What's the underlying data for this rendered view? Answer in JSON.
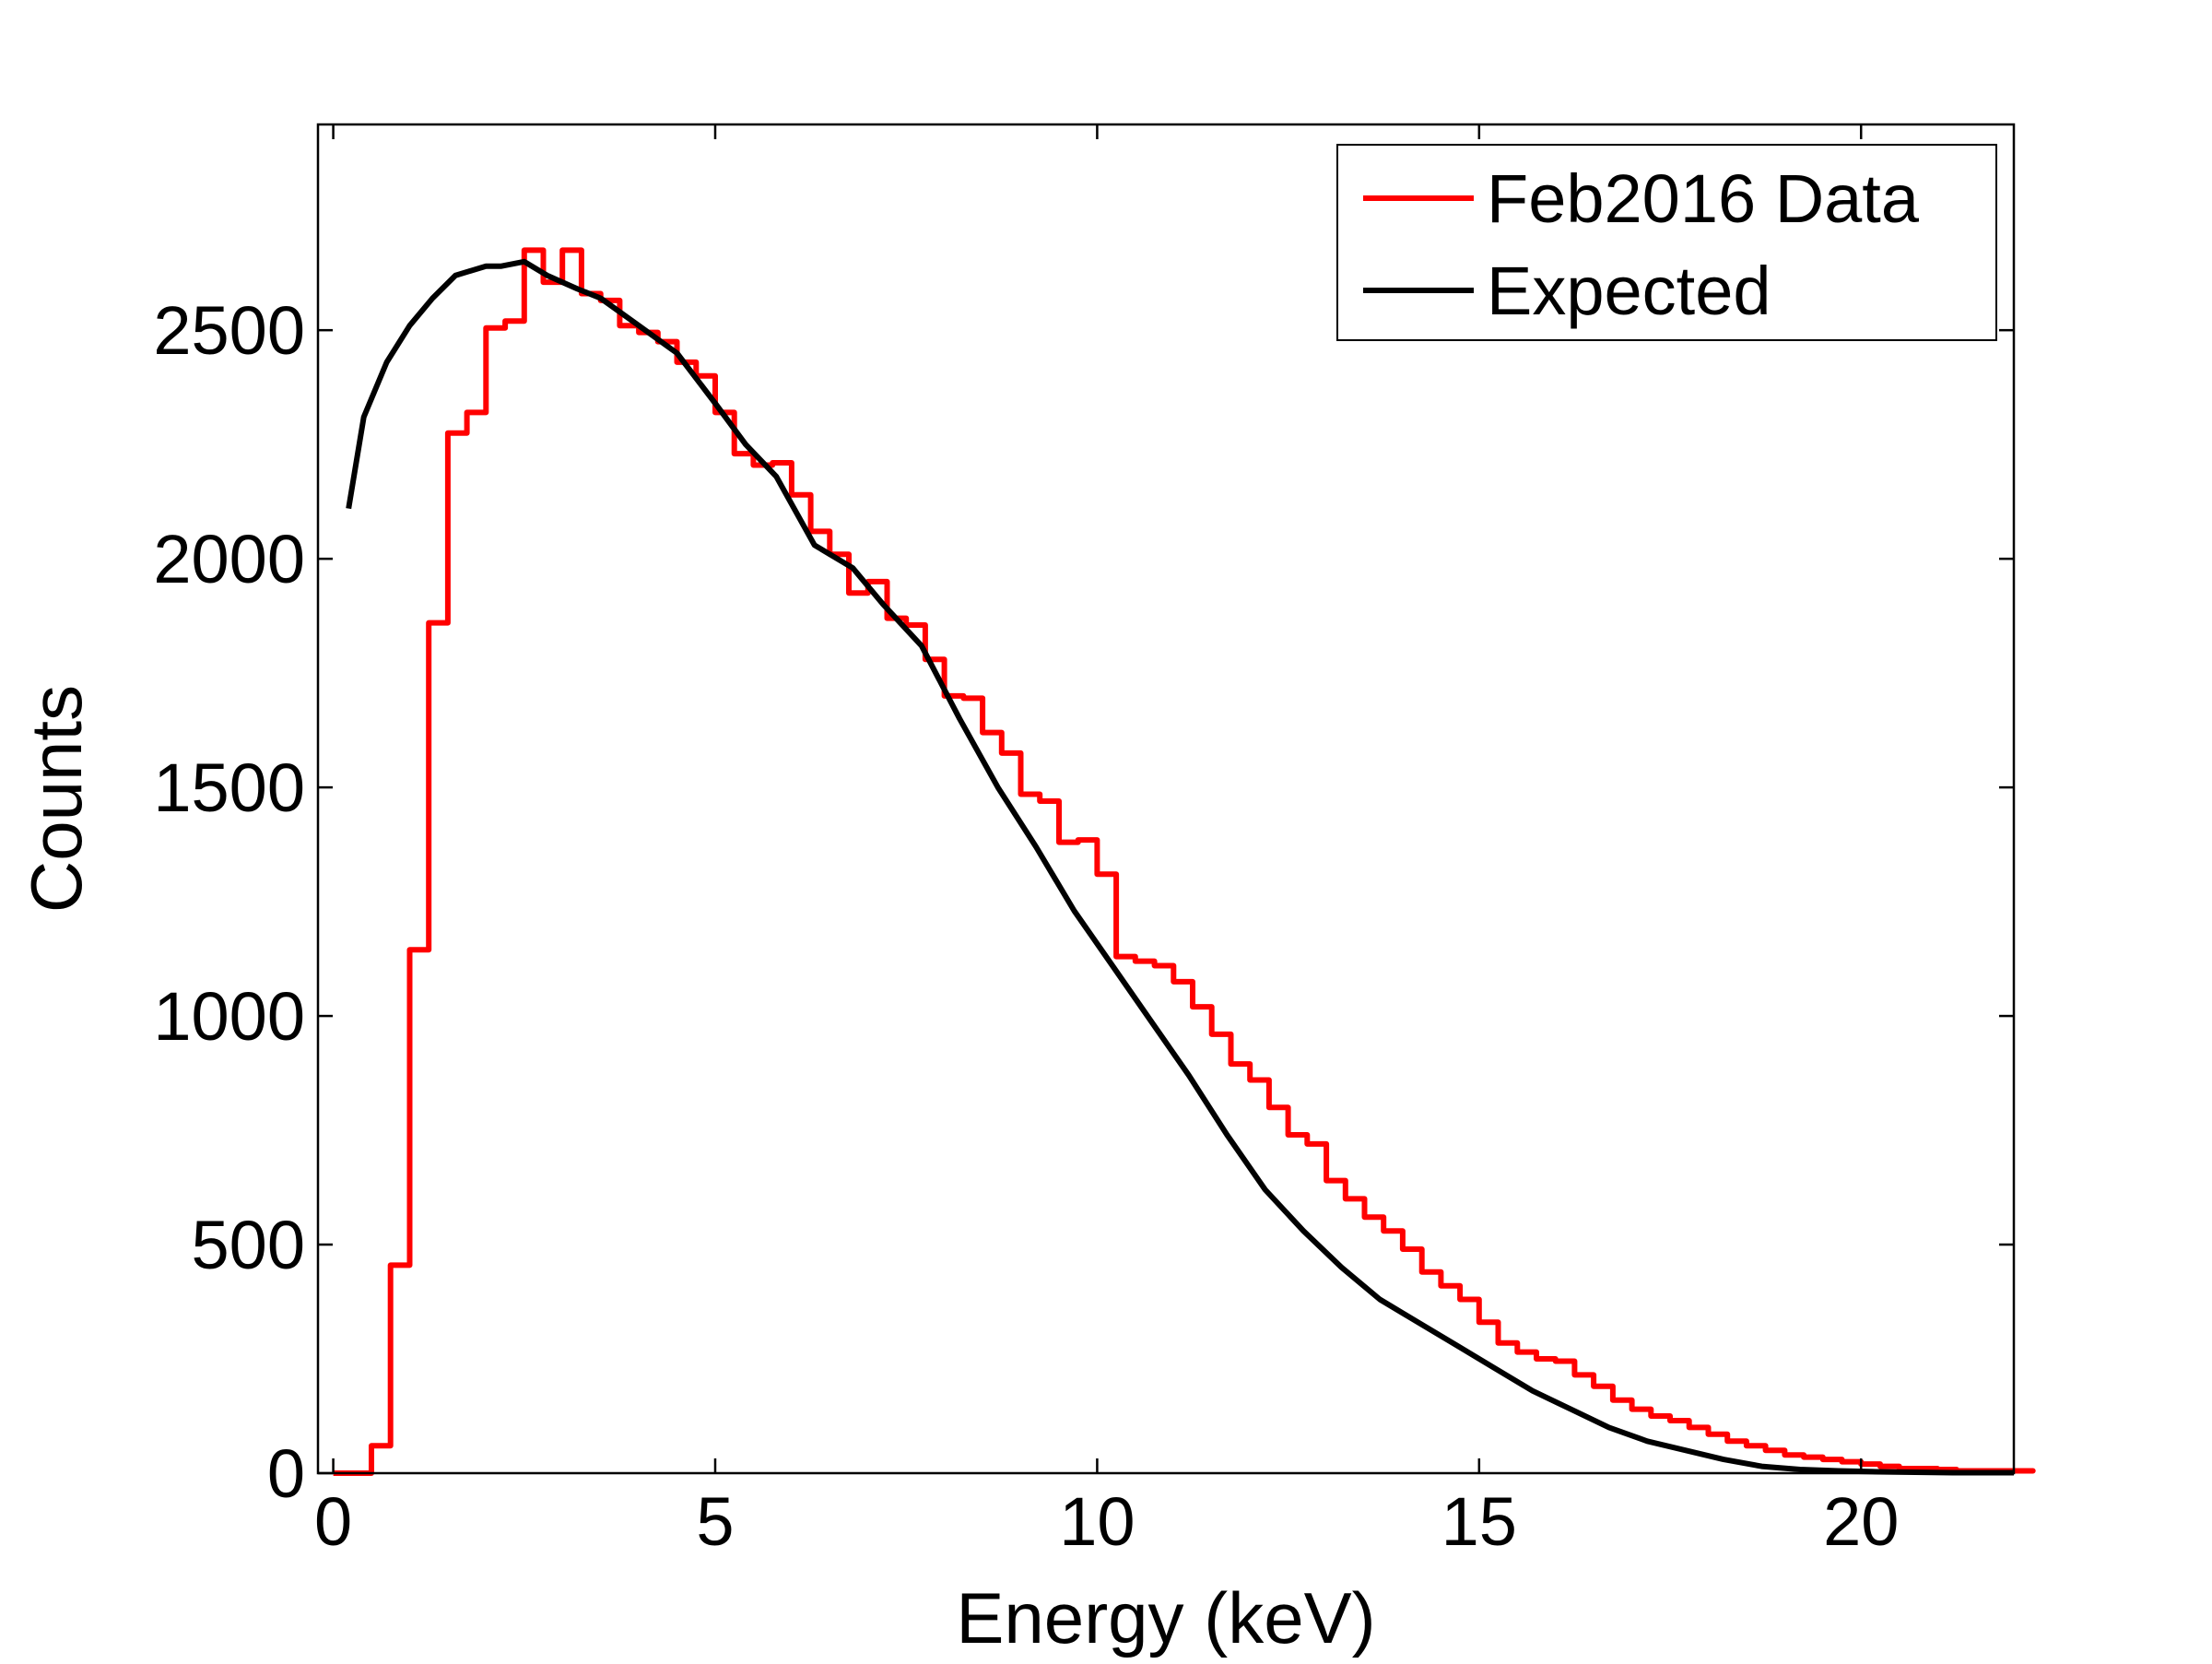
{
  "chart_data": {
    "type": "line",
    "title": "",
    "xlabel": "Energy (keV)",
    "ylabel": "Counts",
    "xlim": [
      -0.2,
      22
    ],
    "ylim": [
      0,
      2950
    ],
    "xticks": [
      0,
      5,
      10,
      15,
      20
    ],
    "yticks": [
      0,
      500,
      1000,
      1500,
      2000,
      2500
    ],
    "grid": false,
    "box": true,
    "legend_position": "top-right",
    "series": [
      {
        "name": "Feb2016 Data",
        "style": "step",
        "color": "#ff0000",
        "bin_width": 0.25,
        "x_start": 0.0,
        "values": [
          0,
          0,
          60,
          455,
          1145,
          1860,
          2275,
          2320,
          2505,
          2520,
          2675,
          2605,
          2675,
          2580,
          2565,
          2510,
          2495,
          2475,
          2430,
          2400,
          2320,
          2230,
          2205,
          2210,
          2140,
          2060,
          2010,
          1925,
          1950,
          1870,
          1855,
          1780,
          1700,
          1695,
          1620,
          1575,
          1485,
          1470,
          1380,
          1385,
          1310,
          1130,
          1120,
          1110,
          1075,
          1020,
          960,
          895,
          860,
          800,
          740,
          720,
          640,
          600,
          560,
          530,
          490,
          440,
          410,
          380,
          330,
          285,
          265,
          250,
          245,
          215,
          190,
          160,
          140,
          125,
          115,
          100,
          85,
          70,
          60,
          50,
          40,
          35,
          30,
          25,
          20,
          15,
          10,
          10,
          8,
          5,
          5,
          5,
          5,
          5
        ]
      },
      {
        "name": "Expected",
        "style": "line",
        "color": "#000000",
        "x": [
          0.2,
          0.4,
          0.7,
          1.0,
          1.3,
          1.6,
          1.8,
          2.0,
          2.2,
          2.5,
          2.8,
          3.2,
          3.5,
          4.0,
          4.5,
          5.0,
          5.4,
          5.8,
          6.3,
          6.8,
          7.2,
          7.7,
          8.2,
          8.7,
          9.2,
          9.7,
          10.2,
          10.7,
          11.2,
          11.7,
          12.2,
          12.7,
          13.2,
          13.7,
          14.2,
          14.7,
          15.2,
          15.7,
          16.2,
          16.7,
          17.2,
          17.7,
          18.2,
          18.7,
          19.2,
          19.7,
          20.2,
          20.7,
          21.2,
          22.0
        ],
        "values": [
          2110,
          2310,
          2430,
          2510,
          2570,
          2620,
          2630,
          2640,
          2640,
          2650,
          2620,
          2590,
          2570,
          2510,
          2450,
          2340,
          2250,
          2180,
          2030,
          1980,
          1900,
          1810,
          1650,
          1500,
          1370,
          1230,
          1110,
          990,
          870,
          740,
          620,
          530,
          450,
          380,
          330,
          280,
          230,
          180,
          140,
          100,
          70,
          50,
          30,
          15,
          8,
          5,
          3,
          2,
          1,
          1
        ]
      }
    ]
  }
}
